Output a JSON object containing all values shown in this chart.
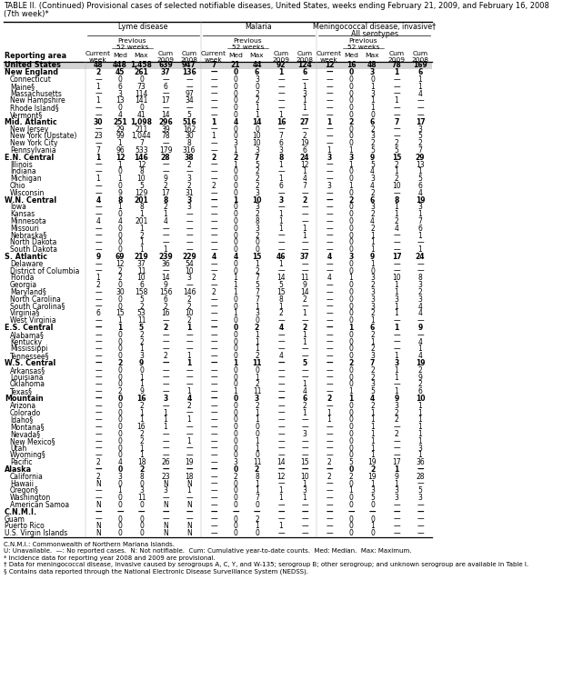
{
  "title_line1": "TABLE II. (Continued) Provisional cases of selected notifiable diseases, United States, weeks ending February 21, 2009, and February 16, 2008",
  "title_line2": "(7th week)*",
  "footnote_lines": [
    "C.N.M.I.: Commonwealth of Northern Mariana Islands.",
    "U: Unavailable.  —: No reported cases.  N: Not notifiable.  Cum: Cumulative year-to-date counts.  Med: Median.  Max: Maximum.",
    "* Incidence data for reporting year 2008 and 2009 are provisional.",
    "† Data for meningococcal disease, invasive caused by serogroups A, C, Y, and W-135; serogroup B; other serogroup; and unknown serogroup are available in Table I.",
    "§ Contains data reported through the National Electronic Disease Surveillance System (NEDSS)."
  ],
  "rows": [
    [
      "United States",
      "48",
      "448",
      "1,458",
      "639",
      "947",
      "7",
      "21",
      "44",
      "92",
      "124",
      "12",
      "16",
      "48",
      "78",
      "169"
    ],
    [
      "New England",
      "2",
      "45",
      "261",
      "37",
      "136",
      "—",
      "0",
      "6",
      "1",
      "6",
      "—",
      "0",
      "3",
      "1",
      "6"
    ],
    [
      "Connecticut",
      "—",
      "0",
      "0",
      "—",
      "—",
      "—",
      "0",
      "3",
      "—",
      "—",
      "—",
      "0",
      "0",
      "—",
      "1"
    ],
    [
      "Maine§",
      "1",
      "6",
      "73",
      "6",
      "—",
      "—",
      "0",
      "0",
      "—",
      "1",
      "—",
      "0",
      "1",
      "—",
      "1"
    ],
    [
      "Massachusetts",
      "—",
      "3",
      "114",
      "—",
      "97",
      "—",
      "0",
      "2",
      "—",
      "3",
      "—",
      "0",
      "3",
      "—",
      "4"
    ],
    [
      "New Hampshire",
      "1",
      "13",
      "141",
      "17",
      "34",
      "—",
      "0",
      "2",
      "—",
      "1",
      "—",
      "0",
      "1",
      "1",
      "—"
    ],
    [
      "Rhode Island§",
      "—",
      "0",
      "0",
      "—",
      "—",
      "—",
      "0",
      "1",
      "—",
      "1",
      "—",
      "0",
      "1",
      "—",
      "—"
    ],
    [
      "Vermont§",
      "—",
      "4",
      "41",
      "14",
      "5",
      "—",
      "0",
      "1",
      "1",
      "—",
      "—",
      "0",
      "0",
      "—",
      "—"
    ],
    [
      "Mid. Atlantic",
      "30",
      "251",
      "1,098",
      "296",
      "516",
      "1",
      "4",
      "14",
      "16",
      "27",
      "1",
      "2",
      "6",
      "7",
      "17"
    ],
    [
      "New Jersey",
      "—",
      "29",
      "211",
      "39",
      "162",
      "—",
      "0",
      "0",
      "—",
      "—",
      "—",
      "0",
      "2",
      "—",
      "3"
    ],
    [
      "New York (Upstate)",
      "23",
      "99",
      "1,044",
      "78",
      "30",
      "1",
      "0",
      "10",
      "7",
      "2",
      "—",
      "0",
      "3",
      "—",
      "5"
    ],
    [
      "New York City",
      "—",
      "1",
      "7",
      "—",
      "8",
      "—",
      "3",
      "10",
      "6",
      "19",
      "—",
      "0",
      "2",
      "2",
      "2"
    ],
    [
      "Pennsylvania",
      "7",
      "96",
      "533",
      "179",
      "316",
      "—",
      "1",
      "3",
      "3",
      "6",
      "1",
      "1",
      "5",
      "5",
      "7"
    ],
    [
      "E.N. Central",
      "1",
      "12",
      "146",
      "28",
      "38",
      "2",
      "2",
      "7",
      "8",
      "24",
      "3",
      "3",
      "9",
      "15",
      "29"
    ],
    [
      "Illinois",
      "—",
      "1",
      "12",
      "—",
      "2",
      "—",
      "1",
      "5",
      "1",
      "12",
      "—",
      "1",
      "5",
      "2",
      "13"
    ],
    [
      "Indiana",
      "—",
      "0",
      "8",
      "—",
      "—",
      "—",
      "0",
      "2",
      "—",
      "1",
      "—",
      "0",
      "4",
      "1",
      "1"
    ],
    [
      "Michigan",
      "1",
      "1",
      "10",
      "9",
      "3",
      "—",
      "0",
      "2",
      "1",
      "4",
      "—",
      "0",
      "3",
      "2",
      "5"
    ],
    [
      "Ohio",
      "—",
      "0",
      "5",
      "2",
      "2",
      "2",
      "0",
      "2",
      "6",
      "7",
      "3",
      "1",
      "4",
      "10",
      "6"
    ],
    [
      "Wisconsin",
      "—",
      "9",
      "129",
      "17",
      "31",
      "—",
      "0",
      "3",
      "—",
      "—",
      "—",
      "0",
      "2",
      "—",
      "4"
    ],
    [
      "W.N. Central",
      "4",
      "8",
      "201",
      "8",
      "3",
      "—",
      "1",
      "10",
      "3",
      "2",
      "—",
      "2",
      "6",
      "8",
      "19"
    ],
    [
      "Iowa",
      "—",
      "1",
      "8",
      "2",
      "3",
      "—",
      "0",
      "3",
      "—",
      "—",
      "—",
      "0",
      "3",
      "1",
      "3"
    ],
    [
      "Kansas",
      "—",
      "0",
      "1",
      "1",
      "—",
      "—",
      "0",
      "2",
      "1",
      "—",
      "—",
      "0",
      "2",
      "1",
      "1"
    ],
    [
      "Minnesota",
      "4",
      "4",
      "201",
      "4",
      "—",
      "—",
      "0",
      "8",
      "1",
      "—",
      "—",
      "0",
      "4",
      "2",
      "7"
    ],
    [
      "Missouri",
      "—",
      "0",
      "1",
      "—",
      "—",
      "—",
      "0",
      "3",
      "1",
      "1",
      "—",
      "0",
      "2",
      "4",
      "6"
    ],
    [
      "Nebraska§",
      "—",
      "0",
      "2",
      "—",
      "—",
      "—",
      "0",
      "2",
      "—",
      "1",
      "—",
      "0",
      "1",
      "—",
      "1"
    ],
    [
      "North Dakota",
      "—",
      "0",
      "1",
      "—",
      "—",
      "—",
      "0",
      "0",
      "—",
      "—",
      "—",
      "0",
      "1",
      "—",
      "—"
    ],
    [
      "South Dakota",
      "—",
      "0",
      "1",
      "1",
      "—",
      "—",
      "0",
      "0",
      "—",
      "—",
      "—",
      "0",
      "1",
      "—",
      "1"
    ],
    [
      "S. Atlantic",
      "9",
      "69",
      "219",
      "239",
      "229",
      "4",
      "4",
      "15",
      "46",
      "37",
      "4",
      "3",
      "9",
      "17",
      "24"
    ],
    [
      "Delaware",
      "—",
      "12",
      "37",
      "36",
      "54",
      "—",
      "0",
      "1",
      "1",
      "—",
      "—",
      "0",
      "1",
      "—",
      "—"
    ],
    [
      "District of Columbia",
      "—",
      "2",
      "11",
      "—",
      "10",
      "—",
      "0",
      "2",
      "—",
      "—",
      "—",
      "0",
      "0",
      "—",
      "—"
    ],
    [
      "Florida",
      "1",
      "2",
      "10",
      "14",
      "3",
      "2",
      "1",
      "7",
      "14",
      "11",
      "4",
      "1",
      "3",
      "10",
      "8"
    ],
    [
      "Georgia",
      "2",
      "0",
      "6",
      "9",
      "—",
      "—",
      "1",
      "5",
      "5",
      "9",
      "—",
      "0",
      "2",
      "1",
      "3"
    ],
    [
      "Maryland§",
      "—",
      "30",
      "158",
      "156",
      "146",
      "2",
      "1",
      "7",
      "15",
      "14",
      "—",
      "0",
      "3",
      "1",
      "2"
    ],
    [
      "North Carolina",
      "—",
      "0",
      "5",
      "6",
      "2",
      "—",
      "0",
      "7",
      "8",
      "2",
      "—",
      "0",
      "3",
      "3",
      "3"
    ],
    [
      "South Carolina§",
      "—",
      "0",
      "2",
      "2",
      "2",
      "—",
      "0",
      "1",
      "1",
      "—",
      "—",
      "0",
      "3",
      "1",
      "4"
    ],
    [
      "Virginia§",
      "6",
      "15",
      "53",
      "16",
      "10",
      "—",
      "1",
      "3",
      "2",
      "1",
      "—",
      "0",
      "2",
      "1",
      "4"
    ],
    [
      "West Virginia",
      "—",
      "1",
      "11",
      "—",
      "2",
      "—",
      "0",
      "0",
      "—",
      "—",
      "—",
      "0",
      "1",
      "—",
      "—"
    ],
    [
      "E.S. Central",
      "—",
      "1",
      "5",
      "2",
      "1",
      "—",
      "0",
      "2",
      "4",
      "2",
      "—",
      "1",
      "6",
      "1",
      "9"
    ],
    [
      "Alabama§",
      "—",
      "0",
      "2",
      "—",
      "—",
      "—",
      "0",
      "1",
      "—",
      "1",
      "—",
      "0",
      "2",
      "—",
      "—"
    ],
    [
      "Kentucky",
      "—",
      "0",
      "2",
      "—",
      "—",
      "—",
      "0",
      "1",
      "—",
      "1",
      "—",
      "0",
      "1",
      "—",
      "4"
    ],
    [
      "Mississippi",
      "—",
      "0",
      "1",
      "—",
      "—",
      "—",
      "0",
      "1",
      "—",
      "—",
      "—",
      "0",
      "2",
      "—",
      "1"
    ],
    [
      "Tennessee§",
      "—",
      "0",
      "3",
      "2",
      "1",
      "—",
      "0",
      "2",
      "4",
      "—",
      "—",
      "0",
      "3",
      "1",
      "4"
    ],
    [
      "W.S. Central",
      "—",
      "2",
      "9",
      "—",
      "1",
      "—",
      "1",
      "11",
      "—",
      "5",
      "—",
      "2",
      "7",
      "3",
      "19"
    ],
    [
      "Arkansas§",
      "—",
      "0",
      "0",
      "—",
      "—",
      "—",
      "0",
      "0",
      "—",
      "—",
      "—",
      "0",
      "2",
      "1",
      "2"
    ],
    [
      "Louisiana",
      "—",
      "0",
      "1",
      "—",
      "—",
      "—",
      "0",
      "1",
      "—",
      "—",
      "—",
      "0",
      "2",
      "1",
      "9"
    ],
    [
      "Oklahoma",
      "—",
      "0",
      "1",
      "—",
      "—",
      "—",
      "0",
      "2",
      "—",
      "1",
      "—",
      "0",
      "3",
      "—",
      "2"
    ],
    [
      "Texas§",
      "—",
      "2",
      "9",
      "—",
      "1",
      "—",
      "1",
      "11",
      "—",
      "4",
      "—",
      "1",
      "5",
      "1",
      "6"
    ],
    [
      "Mountain",
      "—",
      "0",
      "16",
      "3",
      "4",
      "—",
      "0",
      "3",
      "—",
      "6",
      "2",
      "1",
      "4",
      "9",
      "10"
    ],
    [
      "Arizona",
      "—",
      "0",
      "2",
      "—",
      "2",
      "—",
      "0",
      "2",
      "—",
      "2",
      "—",
      "0",
      "2",
      "3",
      "1"
    ],
    [
      "Colorado",
      "—",
      "0",
      "1",
      "1",
      "—",
      "—",
      "0",
      "1",
      "—",
      "1",
      "1",
      "0",
      "1",
      "2",
      "1"
    ],
    [
      "Idaho§",
      "—",
      "0",
      "1",
      "1",
      "1",
      "—",
      "0",
      "1",
      "—",
      "—",
      "1",
      "0",
      "1",
      "2",
      "1"
    ],
    [
      "Montana§",
      "—",
      "0",
      "16",
      "1",
      "—",
      "—",
      "0",
      "0",
      "—",
      "—",
      "—",
      "0",
      "1",
      "—",
      "1"
    ],
    [
      "Nevada§",
      "—",
      "0",
      "2",
      "—",
      "—",
      "—",
      "0",
      "0",
      "—",
      "3",
      "—",
      "0",
      "1",
      "2",
      "1"
    ],
    [
      "New Mexico§",
      "—",
      "0",
      "2",
      "—",
      "1",
      "—",
      "0",
      "1",
      "—",
      "—",
      "—",
      "0",
      "1",
      "—",
      "1"
    ],
    [
      "Utah",
      "—",
      "0",
      "1",
      "—",
      "—",
      "—",
      "0",
      "1",
      "—",
      "—",
      "—",
      "0",
      "1",
      "—",
      "3"
    ],
    [
      "Wyoming§",
      "—",
      "0",
      "1",
      "—",
      "—",
      "—",
      "0",
      "0",
      "—",
      "—",
      "—",
      "0",
      "1",
      "—",
      "1"
    ],
    [
      "Pacific",
      "2",
      "4",
      "18",
      "26",
      "19",
      "—",
      "3",
      "11",
      "14",
      "15",
      "2",
      "5",
      "19",
      "17",
      "36"
    ],
    [
      "Alaska",
      "—",
      "0",
      "2",
      "—",
      "—",
      "—",
      "0",
      "2",
      "—",
      "—",
      "—",
      "0",
      "2",
      "1",
      "—"
    ],
    [
      "California",
      "2",
      "3",
      "8",
      "23",
      "18",
      "—",
      "2",
      "8",
      "12",
      "10",
      "2",
      "2",
      "19",
      "9",
      "28"
    ],
    [
      "Hawaii",
      "N",
      "0",
      "0",
      "N",
      "N",
      "—",
      "0",
      "1",
      "—",
      "1",
      "—",
      "0",
      "1",
      "1",
      "—"
    ],
    [
      "Oregon§",
      "—",
      "1",
      "3",
      "3",
      "1",
      "—",
      "0",
      "1",
      "1",
      "3",
      "—",
      "1",
      "3",
      "3",
      "5"
    ],
    [
      "Washington",
      "—",
      "0",
      "11",
      "—",
      "—",
      "—",
      "0",
      "7",
      "1",
      "1",
      "—",
      "0",
      "5",
      "3",
      "3"
    ],
    [
      "American Samoa",
      "N",
      "0",
      "0",
      "N",
      "N",
      "—",
      "0",
      "0",
      "—",
      "—",
      "—",
      "0",
      "0",
      "—",
      "—"
    ],
    [
      "C.N.M.I.",
      "—",
      "—",
      "—",
      "—",
      "—",
      "—",
      "—",
      "—",
      "—",
      "—",
      "—",
      "—",
      "—",
      "—",
      "—"
    ],
    [
      "Guam",
      "—",
      "0",
      "0",
      "—",
      "—",
      "—",
      "0",
      "2",
      "—",
      "—",
      "—",
      "0",
      "0",
      "—",
      "—"
    ],
    [
      "Puerto Rico",
      "N",
      "0",
      "0",
      "N",
      "N",
      "—",
      "0",
      "1",
      "1",
      "—",
      "—",
      "0",
      "1",
      "—",
      "—"
    ],
    [
      "U.S. Virgin Islands",
      "N",
      "0",
      "0",
      "N",
      "N",
      "—",
      "0",
      "0",
      "—",
      "—",
      "—",
      "0",
      "0",
      "—",
      "—"
    ]
  ],
  "bold_rows": [
    0,
    1,
    8,
    13,
    19,
    27,
    37,
    42,
    47,
    57,
    63
  ],
  "indent_rows": [
    2,
    3,
    4,
    5,
    6,
    7,
    9,
    10,
    11,
    12,
    14,
    15,
    16,
    17,
    18,
    20,
    21,
    22,
    23,
    24,
    25,
    26,
    28,
    29,
    30,
    31,
    32,
    33,
    34,
    35,
    36,
    38,
    39,
    40,
    41,
    43,
    44,
    45,
    46,
    48,
    49,
    50,
    51,
    52,
    53,
    54,
    55,
    56,
    58,
    59,
    60,
    61,
    62
  ]
}
